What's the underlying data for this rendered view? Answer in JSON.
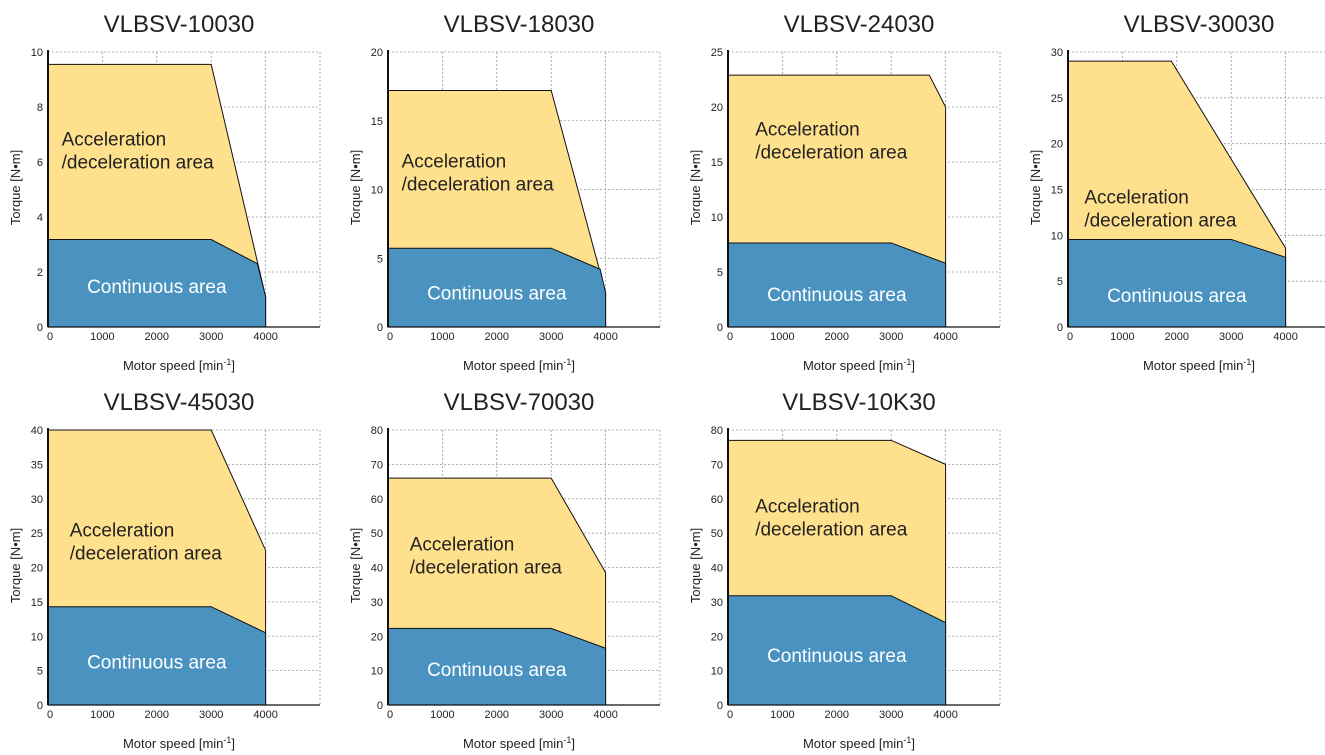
{
  "colors": {
    "acceleration_area": "#FFE08C",
    "continuous_area": "#4A93C1",
    "outline": "#111111",
    "grid": "#9a9a9a"
  },
  "chart_data": [
    {
      "type": "area",
      "title": "VLBSV-10030",
      "xlabel": "Motor speed [min",
      "xlabel_sup": "-1",
      "xlabel_end": "]",
      "ylabel": "Torque [N•m]",
      "xlim": [
        0,
        5000
      ],
      "ylim": [
        0,
        10
      ],
      "xticks": [
        0,
        1000,
        2000,
        3000,
        4000
      ],
      "yticks": [
        0,
        2,
        4,
        6,
        8,
        10
      ],
      "grid": true,
      "series": [
        {
          "name": "Acceleration\n/deceleration area",
          "x": [
            0,
            3000,
            4000
          ],
          "y": [
            9.55,
            9.55,
            1.1
          ]
        },
        {
          "name": "Continuous area",
          "x": [
            0,
            3000,
            3850,
            4000
          ],
          "y": [
            3.18,
            3.18,
            2.3,
            1.1
          ]
        }
      ]
    },
    {
      "type": "area",
      "title": "VLBSV-18030",
      "xlabel": "Motor speed [min",
      "xlabel_sup": "-1",
      "xlabel_end": "]",
      "ylabel": "Torque [N•m]",
      "xlim": [
        0,
        5000
      ],
      "ylim": [
        0,
        20
      ],
      "xticks": [
        0,
        1000,
        2000,
        3000,
        4000
      ],
      "yticks": [
        0,
        5,
        10,
        15,
        20
      ],
      "grid": true,
      "series": [
        {
          "name": "Acceleration\n/deceleration area",
          "x": [
            0,
            3000,
            4000
          ],
          "y": [
            17.2,
            17.2,
            2.5
          ]
        },
        {
          "name": "Continuous area",
          "x": [
            0,
            3000,
            3900,
            4000
          ],
          "y": [
            5.73,
            5.73,
            4.2,
            2.5
          ]
        }
      ]
    },
    {
      "type": "area",
      "title": "VLBSV-24030",
      "xlabel": "Motor speed [min",
      "xlabel_sup": "-1",
      "xlabel_end": "]",
      "ylabel": "Torque [N•m]",
      "xlim": [
        0,
        5000
      ],
      "ylim": [
        0,
        25
      ],
      "xticks": [
        0,
        1000,
        2000,
        3000,
        4000
      ],
      "yticks": [
        0,
        5,
        10,
        15,
        20,
        25
      ],
      "grid": true,
      "series": [
        {
          "name": "Acceleration\n/deceleration area",
          "x": [
            0,
            3700,
            4000
          ],
          "y": [
            22.9,
            22.9,
            20.0
          ]
        },
        {
          "name": "Continuous area",
          "x": [
            0,
            3000,
            4000
          ],
          "y": [
            7.64,
            7.64,
            5.8
          ]
        }
      ]
    },
    {
      "type": "area",
      "title": "VLBSV-30030",
      "xlabel": "Motor speed [min",
      "xlabel_sup": "-1",
      "xlabel_end": "]",
      "ylabel": "Torque [N•m]",
      "xlim": [
        0,
        5000
      ],
      "ylim": [
        0,
        30
      ],
      "xticks": [
        0,
        1000,
        2000,
        3000,
        4000
      ],
      "yticks": [
        0,
        5,
        10,
        15,
        20,
        25,
        30
      ],
      "grid": true,
      "series": [
        {
          "name": "Acceleration\n/deceleration area",
          "x": [
            0,
            1900,
            4000
          ],
          "y": [
            29.0,
            29.0,
            8.6
          ]
        },
        {
          "name": "Continuous area",
          "x": [
            0,
            3000,
            4000
          ],
          "y": [
            9.55,
            9.55,
            7.6
          ]
        }
      ]
    },
    {
      "type": "area",
      "title": "VLBSV-45030",
      "xlabel": "Motor speed [min",
      "xlabel_sup": "-1",
      "xlabel_end": "]",
      "ylabel": "Torque [N•m]",
      "xlim": [
        0,
        5000
      ],
      "ylim": [
        0,
        40
      ],
      "xticks": [
        0,
        1000,
        2000,
        3000,
        4000
      ],
      "yticks": [
        0,
        5,
        10,
        15,
        20,
        25,
        30,
        35,
        40
      ],
      "grid": true,
      "series": [
        {
          "name": "Acceleration\n/deceleration area",
          "x": [
            0,
            3000,
            4000
          ],
          "y": [
            40.0,
            40.0,
            22.5
          ]
        },
        {
          "name": "Continuous area",
          "x": [
            0,
            3000,
            4000
          ],
          "y": [
            14.3,
            14.3,
            10.5
          ]
        }
      ]
    },
    {
      "type": "area",
      "title": "VLBSV-70030",
      "xlabel": "Motor speed [min",
      "xlabel_sup": "-1",
      "xlabel_end": "]",
      "ylabel": "Torque [N•m]",
      "xlim": [
        0,
        5000
      ],
      "ylim": [
        0,
        80
      ],
      "xticks": [
        0,
        1000,
        2000,
        3000,
        4000
      ],
      "yticks": [
        0,
        10,
        20,
        30,
        40,
        50,
        60,
        70,
        80
      ],
      "grid": true,
      "series": [
        {
          "name": "Acceleration\n/deceleration area",
          "x": [
            0,
            3000,
            4000
          ],
          "y": [
            66.0,
            66.0,
            38.5
          ]
        },
        {
          "name": "Continuous area",
          "x": [
            0,
            3000,
            4000
          ],
          "y": [
            22.3,
            22.3,
            16.5
          ]
        }
      ]
    },
    {
      "type": "area",
      "title": "VLBSV-10K30",
      "xlabel": "Motor speed [min",
      "xlabel_sup": "-1",
      "xlabel_end": "]",
      "ylabel": "Torque [N•m]",
      "xlim": [
        0,
        5000
      ],
      "ylim": [
        0,
        80
      ],
      "xticks": [
        0,
        1000,
        2000,
        3000,
        4000
      ],
      "yticks": [
        0,
        10,
        20,
        30,
        40,
        50,
        60,
        70,
        80
      ],
      "grid": true,
      "series": [
        {
          "name": "Acceleration\n/deceleration area",
          "x": [
            0,
            3000,
            4000
          ],
          "y": [
            77.0,
            77.0,
            70.0
          ]
        },
        {
          "name": "Continuous area",
          "x": [
            0,
            3000,
            4000
          ],
          "y": [
            31.8,
            31.8,
            24.0
          ]
        }
      ]
    }
  ]
}
